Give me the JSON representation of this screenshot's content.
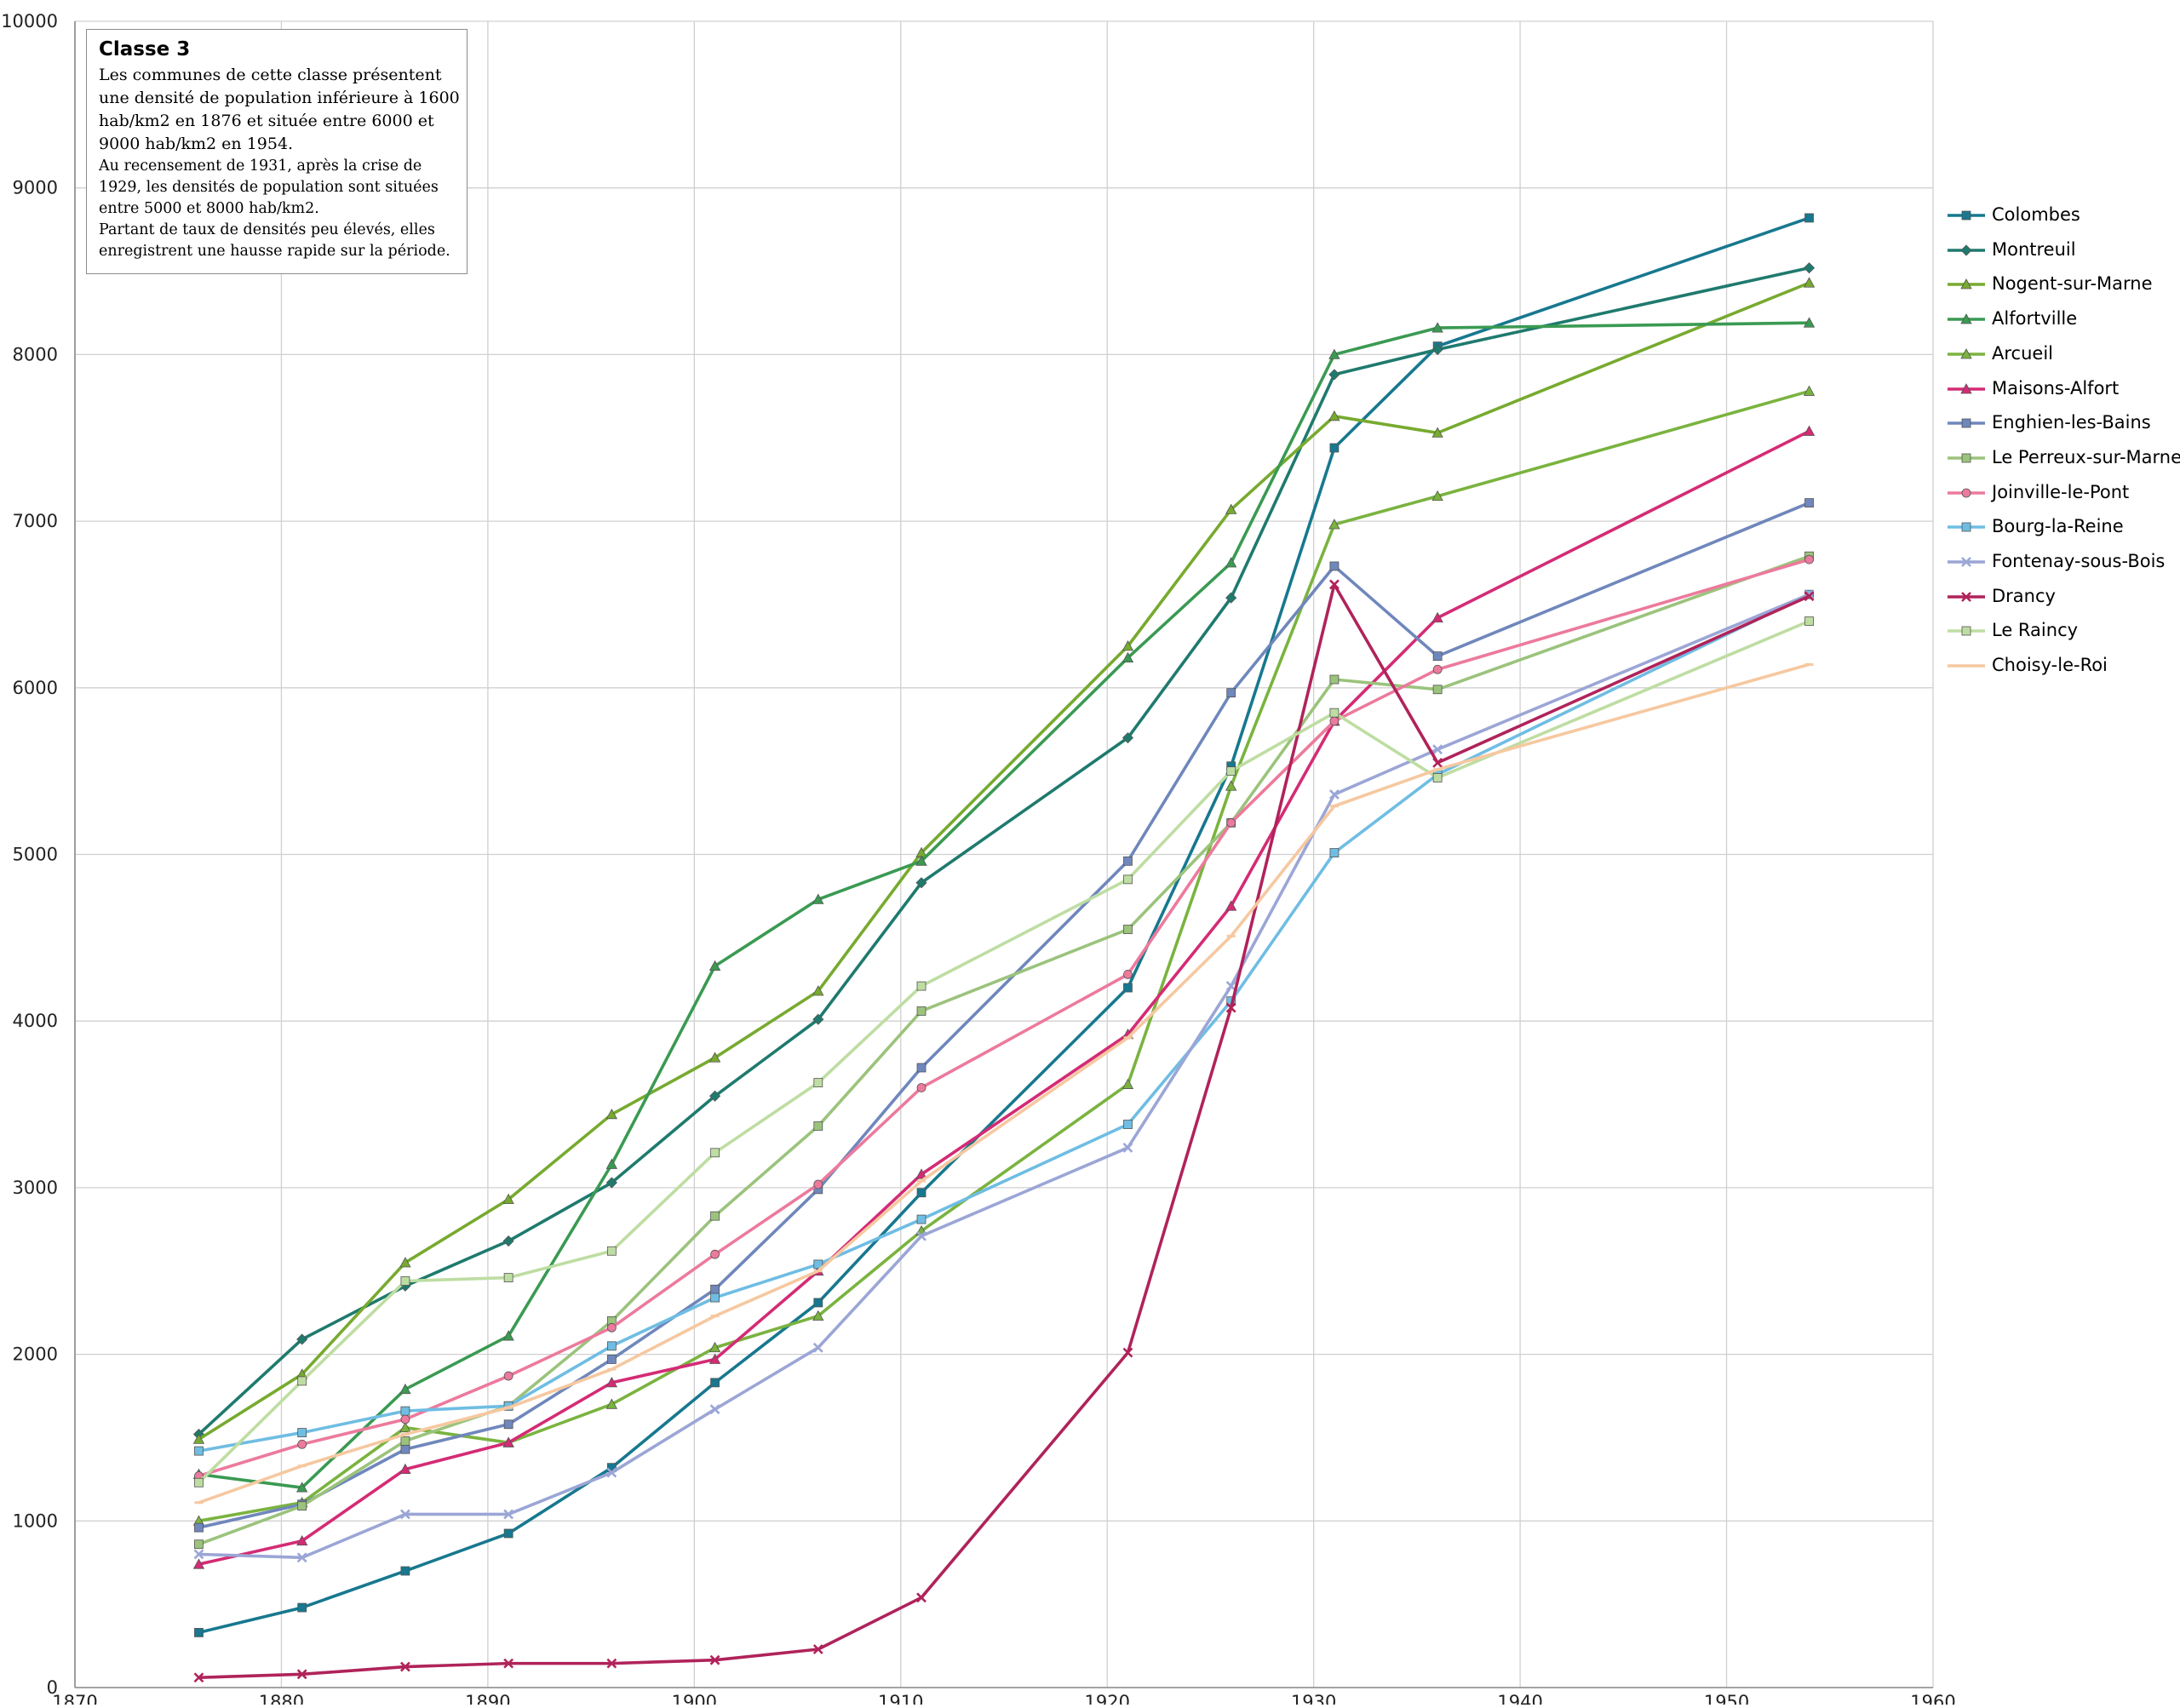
{
  "chart_data": {
    "type": "line",
    "title": "",
    "xlabel": "",
    "ylabel": "",
    "xlim": [
      1870,
      1960
    ],
    "ylim": [
      0,
      10000
    ],
    "x_ticks": [
      "1870",
      "1880",
      "1890",
      "1900",
      "1910",
      "1920",
      "1930",
      "1940",
      "1950",
      "1960"
    ],
    "y_ticks": [
      "0",
      "1000",
      "2000",
      "3000",
      "4000",
      "5000",
      "6000",
      "7000",
      "8000",
      "9000",
      "10000"
    ],
    "grid": true,
    "legend_position": "right",
    "x": [
      1876,
      1881,
      1886,
      1891,
      1896,
      1901,
      1906,
      1911,
      1921,
      1926,
      1931,
      1936,
      1954
    ],
    "series": [
      {
        "name": "Colombes",
        "color": "#17788f",
        "marker": "square",
        "values": [
          330,
          480,
          700,
          925,
          1320,
          1830,
          2310,
          2970,
          4200,
          5530,
          7440,
          8050,
          8820
        ]
      },
      {
        "name": "Montreuil",
        "color": "#1f7a6e",
        "marker": "diamond",
        "values": [
          1520,
          2090,
          2410,
          2680,
          3030,
          3550,
          4010,
          4830,
          5700,
          6540,
          7880,
          8030,
          8520
        ]
      },
      {
        "name": "Nogent-sur-Marne",
        "color": "#77aa2f",
        "marker": "triangle",
        "values": [
          1490,
          1880,
          2550,
          2930,
          3440,
          3780,
          4180,
          5010,
          6250,
          7070,
          7630,
          7530,
          8430
        ]
      },
      {
        "name": "Alfortville",
        "color": "#3a9a52",
        "marker": "triangle",
        "values": [
          1280,
          1200,
          1790,
          2110,
          3140,
          4330,
          4730,
          4960,
          6180,
          6750,
          8000,
          8160,
          8190
        ]
      },
      {
        "name": "Arcueil",
        "color": "#7ab33f",
        "marker": "triangle",
        "values": [
          1000,
          1110,
          1560,
          1470,
          1700,
          2040,
          2230,
          2740,
          3620,
          5410,
          6980,
          7150,
          7780
        ]
      },
      {
        "name": "Maisons-Alfort",
        "color": "#d42b75",
        "marker": "triangle",
        "values": [
          740,
          880,
          1310,
          1470,
          1830,
          1970,
          2500,
          3080,
          3920,
          4690,
          5800,
          6420,
          7540
        ]
      },
      {
        "name": "Enghien-les-Bains",
        "color": "#6f87bc",
        "marker": "square",
        "values": [
          960,
          1100,
          1430,
          1580,
          1970,
          2390,
          2990,
          3720,
          4960,
          5970,
          6730,
          6190,
          7110
        ]
      },
      {
        "name": "Le Perreux-sur-Marne",
        "color": "#9bc37c",
        "marker": "square",
        "values": [
          860,
          1090,
          1480,
          1690,
          2200,
          2830,
          3370,
          4060,
          4550,
          5190,
          6050,
          5990,
          6790
        ]
      },
      {
        "name": "Joinville-le-Pont",
        "color": "#ec7a9c",
        "marker": "circle",
        "values": [
          1270,
          1460,
          1610,
          1870,
          2160,
          2600,
          3020,
          3600,
          4280,
          5190,
          5800,
          6110,
          6770
        ]
      },
      {
        "name": "Bourg-la-Reine",
        "color": "#6fbde3",
        "marker": "square",
        "values": [
          1420,
          1530,
          1660,
          1690,
          2050,
          2340,
          2540,
          2810,
          3380,
          4120,
          5010,
          5480,
          6560
        ]
      },
      {
        "name": "Fontenay-sous-Bois",
        "color": "#9ba6d6",
        "marker": "x",
        "values": [
          800,
          780,
          1040,
          1040,
          1290,
          1670,
          2040,
          2710,
          3240,
          4210,
          5360,
          5630,
          6560
        ]
      },
      {
        "name": "Drancy",
        "color": "#b0235a",
        "marker": "x",
        "values": [
          60,
          80,
          125,
          145,
          145,
          165,
          230,
          540,
          2010,
          4080,
          6620,
          5550,
          6550
        ]
      },
      {
        "name": "Le Raincy",
        "color": "#bedda2",
        "marker": "square",
        "values": [
          1230,
          1840,
          2440,
          2460,
          2620,
          3210,
          3630,
          4210,
          4850,
          5500,
          5850,
          5460,
          6400
        ]
      },
      {
        "name": "Choisy-le-Roi",
        "color": "#f6c8a0",
        "marker": "dash",
        "values": [
          1110,
          1330,
          1520,
          1680,
          1910,
          2230,
          2500,
          3040,
          3900,
          4510,
          5290,
          5510,
          6140
        ]
      }
    ]
  },
  "note": {
    "title": "Classe  3",
    "lines": [
      "Les communes de cette classe présentent",
      "une densité de population inférieure à 1600",
      "hab/km2 en 1876 et située entre 6000 et",
      "9000 hab/km2 en 1954."
    ],
    "small_lines": [
      "Au recensement de 1931, après la crise de",
      "1929, les densités de population sont situées",
      "entre  5000 et 8000 hab/km2.",
      "Partant de taux de densités peu élevés, elles",
      "enregistrent une hausse rapide sur la période."
    ]
  }
}
